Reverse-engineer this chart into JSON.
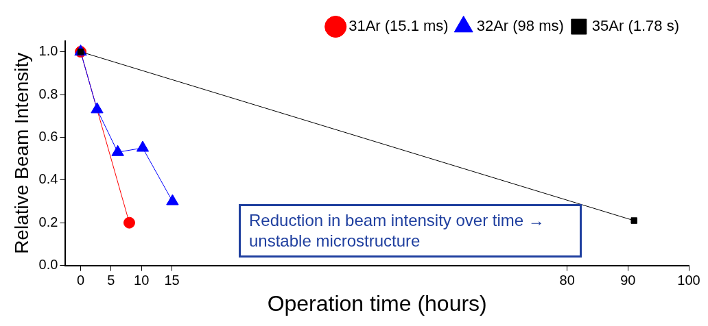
{
  "chart_data": {
    "type": "line",
    "xlabel": "Operation time (hours)",
    "ylabel": "Relative Beam Intensity",
    "xlim": [
      -2.5,
      100
    ],
    "xticks": [
      0,
      5,
      10,
      15,
      80,
      90,
      100
    ],
    "ylim": [
      0,
      1.05
    ],
    "yticks": [
      {
        "value": 0,
        "label": "0.0"
      },
      {
        "value": 0.2,
        "label": "0.2"
      },
      {
        "value": 0.4,
        "label": "0.4"
      },
      {
        "value": 0.6,
        "label": "0.6"
      },
      {
        "value": 0.8,
        "label": "0.8"
      },
      {
        "value": 1,
        "label": "1.0"
      }
    ],
    "grid": false,
    "legend": "top right",
    "annotations": [
      "Reduction in beam intensity over time → unstable microstructure"
    ],
    "series": [
      {
        "name": "31Ar (15.1 ms)",
        "color": "#ff0000",
        "marker": "circle",
        "x": [
          0,
          8
        ],
        "values": [
          1,
          0.2
        ]
      },
      {
        "name": "32Ar (98 ms)",
        "color": "#0000ff",
        "marker": "triangle",
        "x": [
          0,
          2.7,
          6.1,
          10.2,
          15.1
        ],
        "values": [
          1,
          0.73,
          0.53,
          0.55,
          0.3
        ]
      },
      {
        "name": "35Ar (1.78 s)",
        "color": "#000000",
        "marker": "square",
        "x": [
          0,
          91
        ],
        "values": [
          1,
          0.21
        ]
      }
    ]
  }
}
